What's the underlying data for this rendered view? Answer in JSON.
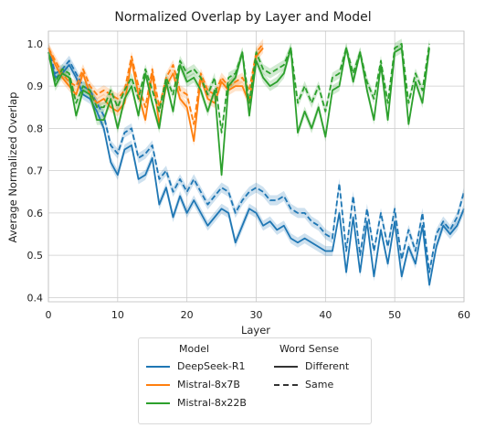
{
  "chart_data": {
    "type": "line",
    "title": "Normalized Overlap by Layer and Model",
    "xlabel": "Layer",
    "ylabel": "Average Normalized Overlap",
    "xlim": [
      0,
      60
    ],
    "ylim": [
      0.39,
      1.03
    ],
    "xticks": [
      0,
      10,
      20,
      30,
      40,
      50,
      60
    ],
    "yticks": [
      0.4,
      0.5,
      0.6,
      0.7,
      0.8,
      0.9,
      1.0
    ],
    "ytick_labels": [
      "0.4",
      "0.5",
      "0.6",
      "0.7",
      "0.8",
      "0.9",
      "1.0"
    ],
    "grid": true,
    "legend_position": "bottom-center, below axes",
    "legend": {
      "model_header": "Model",
      "sense_header": "Word Sense",
      "models": [
        "DeepSeek-R1",
        "Mistral-8x7B",
        "Mistral-8x22B"
      ],
      "senses": [
        "Different",
        "Same"
      ]
    },
    "series": [
      {
        "model": "DeepSeek-R1",
        "sense": "Different",
        "color": "#1f77b4",
        "style": "solid",
        "x": [
          0,
          1,
          2,
          3,
          4,
          5,
          6,
          7,
          8,
          9,
          10,
          11,
          12,
          13,
          14,
          15,
          16,
          17,
          18,
          19,
          20,
          21,
          22,
          23,
          24,
          25,
          26,
          27,
          28,
          29,
          30,
          31,
          32,
          33,
          34,
          35,
          36,
          37,
          38,
          39,
          40,
          41,
          42,
          43,
          44,
          45,
          46,
          47,
          48,
          49,
          50,
          51,
          52,
          53,
          54,
          55,
          56,
          57,
          58,
          59,
          60
        ],
        "y": [
          0.98,
          0.92,
          0.93,
          0.95,
          0.92,
          0.88,
          0.87,
          0.84,
          0.8,
          0.72,
          0.69,
          0.75,
          0.76,
          0.68,
          0.69,
          0.73,
          0.62,
          0.66,
          0.59,
          0.64,
          0.6,
          0.63,
          0.6,
          0.57,
          0.59,
          0.61,
          0.6,
          0.53,
          0.57,
          0.61,
          0.6,
          0.57,
          0.58,
          0.56,
          0.57,
          0.54,
          0.53,
          0.54,
          0.53,
          0.52,
          0.51,
          0.51,
          0.6,
          0.46,
          0.59,
          0.46,
          0.58,
          0.45,
          0.56,
          0.48,
          0.58,
          0.45,
          0.52,
          0.48,
          0.57,
          0.43,
          0.52,
          0.57,
          0.55,
          0.57,
          0.61
        ]
      },
      {
        "model": "DeepSeek-R1",
        "sense": "Same",
        "color": "#1f77b4",
        "style": "dashed",
        "x": [
          0,
          1,
          2,
          3,
          4,
          5,
          6,
          7,
          8,
          9,
          10,
          11,
          12,
          13,
          14,
          15,
          16,
          17,
          18,
          19,
          20,
          21,
          22,
          23,
          24,
          25,
          26,
          27,
          28,
          29,
          30,
          31,
          32,
          33,
          34,
          35,
          36,
          37,
          38,
          39,
          40,
          41,
          42,
          43,
          44,
          45,
          46,
          47,
          48,
          49,
          50,
          51,
          52,
          53,
          54,
          55,
          56,
          57,
          58,
          59,
          60
        ],
        "y": [
          0.99,
          0.93,
          0.94,
          0.96,
          0.93,
          0.9,
          0.89,
          0.86,
          0.83,
          0.76,
          0.74,
          0.79,
          0.8,
          0.73,
          0.74,
          0.76,
          0.68,
          0.7,
          0.65,
          0.68,
          0.65,
          0.68,
          0.65,
          0.62,
          0.64,
          0.66,
          0.65,
          0.6,
          0.63,
          0.65,
          0.66,
          0.65,
          0.63,
          0.63,
          0.64,
          0.61,
          0.6,
          0.6,
          0.58,
          0.57,
          0.55,
          0.54,
          0.67,
          0.51,
          0.64,
          0.5,
          0.61,
          0.51,
          0.6,
          0.52,
          0.61,
          0.49,
          0.56,
          0.51,
          0.6,
          0.46,
          0.55,
          0.58,
          0.56,
          0.59,
          0.65
        ]
      },
      {
        "model": "Mistral-8x7B",
        "sense": "Different",
        "color": "#ff7f0e",
        "style": "solid",
        "x": [
          0,
          1,
          2,
          3,
          4,
          5,
          6,
          7,
          8,
          9,
          10,
          11,
          12,
          13,
          14,
          15,
          16,
          17,
          18,
          19,
          20,
          21,
          22,
          23,
          24,
          25,
          26,
          27,
          28,
          29,
          30,
          31
        ],
        "y": [
          0.99,
          0.95,
          0.92,
          0.9,
          0.88,
          0.93,
          0.88,
          0.86,
          0.87,
          0.85,
          0.84,
          0.86,
          0.96,
          0.88,
          0.82,
          0.93,
          0.81,
          0.9,
          0.93,
          0.87,
          0.85,
          0.77,
          0.92,
          0.87,
          0.86,
          0.91,
          0.89,
          0.9,
          0.9,
          0.86,
          0.97,
          0.99
        ]
      },
      {
        "model": "Mistral-8x7B",
        "sense": "Same",
        "color": "#ff7f0e",
        "style": "dashed",
        "x": [
          0,
          1,
          2,
          3,
          4,
          5,
          6,
          7,
          8,
          9,
          10,
          11,
          12,
          13,
          14,
          15,
          16,
          17,
          18,
          19,
          20,
          21,
          22,
          23,
          24,
          25,
          26,
          27,
          28,
          29,
          30,
          31
        ],
        "y": [
          0.99,
          0.96,
          0.93,
          0.91,
          0.9,
          0.94,
          0.9,
          0.88,
          0.89,
          0.88,
          0.87,
          0.89,
          0.97,
          0.9,
          0.85,
          0.94,
          0.85,
          0.92,
          0.95,
          0.89,
          0.88,
          0.81,
          0.93,
          0.89,
          0.88,
          0.92,
          0.9,
          0.91,
          0.92,
          0.89,
          0.98,
          1.0
        ]
      },
      {
        "model": "Mistral-8x22B",
        "sense": "Different",
        "color": "#2ca02c",
        "style": "solid",
        "x": [
          0,
          1,
          2,
          3,
          4,
          5,
          6,
          7,
          8,
          9,
          10,
          11,
          12,
          13,
          14,
          15,
          16,
          17,
          18,
          19,
          20,
          21,
          22,
          23,
          24,
          25,
          26,
          27,
          28,
          29,
          30,
          31,
          32,
          33,
          34,
          35,
          36,
          37,
          38,
          39,
          40,
          41,
          42,
          43,
          44,
          45,
          46,
          47,
          48,
          49,
          50,
          51,
          52,
          53,
          54,
          55
        ],
        "y": [
          0.98,
          0.9,
          0.93,
          0.92,
          0.83,
          0.89,
          0.88,
          0.82,
          0.82,
          0.87,
          0.8,
          0.87,
          0.9,
          0.83,
          0.93,
          0.86,
          0.8,
          0.91,
          0.84,
          0.95,
          0.91,
          0.92,
          0.89,
          0.84,
          0.89,
          0.69,
          0.9,
          0.92,
          0.98,
          0.83,
          0.96,
          0.92,
          0.9,
          0.91,
          0.93,
          0.99,
          0.79,
          0.84,
          0.8,
          0.85,
          0.78,
          0.89,
          0.9,
          0.99,
          0.91,
          0.98,
          0.89,
          0.82,
          0.95,
          0.82,
          0.98,
          0.99,
          0.81,
          0.91,
          0.86,
          0.99
        ]
      },
      {
        "model": "Mistral-8x22B",
        "sense": "Same",
        "color": "#2ca02c",
        "style": "dashed",
        "x": [
          0,
          1,
          2,
          3,
          4,
          5,
          6,
          7,
          8,
          9,
          10,
          11,
          12,
          13,
          14,
          15,
          16,
          17,
          18,
          19,
          20,
          21,
          22,
          23,
          24,
          25,
          26,
          27,
          28,
          29,
          30,
          31,
          32,
          33,
          34,
          35,
          36,
          37,
          38,
          39,
          40,
          41,
          42,
          43,
          44,
          45,
          46,
          47,
          48,
          49,
          50,
          51,
          52,
          53,
          54,
          55
        ],
        "y": [
          0.98,
          0.91,
          0.94,
          0.93,
          0.86,
          0.9,
          0.89,
          0.85,
          0.85,
          0.89,
          0.85,
          0.89,
          0.92,
          0.87,
          0.94,
          0.89,
          0.84,
          0.92,
          0.88,
          0.96,
          0.93,
          0.94,
          0.92,
          0.88,
          0.92,
          0.79,
          0.92,
          0.93,
          0.98,
          0.86,
          0.98,
          0.94,
          0.93,
          0.94,
          0.95,
          0.99,
          0.86,
          0.9,
          0.86,
          0.9,
          0.84,
          0.92,
          0.93,
          0.99,
          0.93,
          0.98,
          0.91,
          0.87,
          0.96,
          0.86,
          0.99,
          1.0,
          0.86,
          0.93,
          0.89,
          1.0
        ]
      }
    ]
  }
}
